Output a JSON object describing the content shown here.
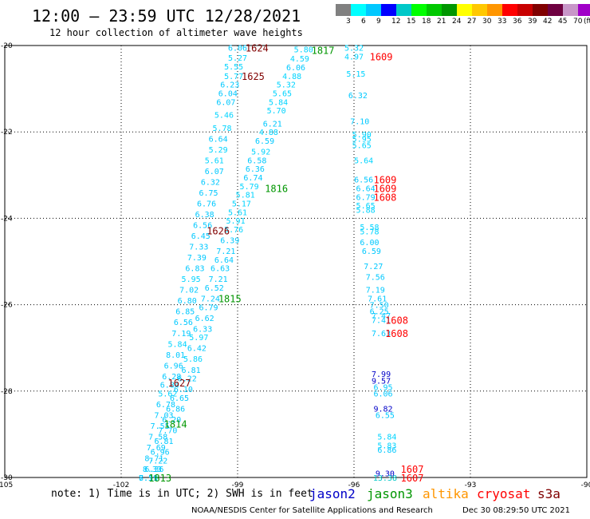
{
  "title": "12:00 — 23:59 UTC 12/28/2021",
  "subtitle": "12 hour collection of altimeter wave heights",
  "colorbar": {
    "colors": [
      "#808080",
      "#00ffff",
      "#00c8ff",
      "#0000ff",
      "#00c8c8",
      "#00ff00",
      "#00c800",
      "#009600",
      "#ffff00",
      "#ffc800",
      "#ff9600",
      "#ff0000",
      "#c80000",
      "#800000",
      "#6e0040",
      "#c896c8",
      "#a000c8",
      "#000000"
    ],
    "ticks": [
      "3",
      "6",
      "9",
      "12",
      "15",
      "18",
      "21",
      "24",
      "27",
      "30",
      "33",
      "36",
      "39",
      "42",
      "45",
      "70",
      "(ft)"
    ]
  },
  "axes": {
    "x_ticks": [
      "-105",
      "-102",
      "-99",
      "-96",
      "-93",
      "-90"
    ],
    "y_ticks": [
      "-20",
      "-22",
      "-24",
      "-26",
      "-28",
      "-30"
    ]
  },
  "satellites": [
    "jason2",
    "jason3",
    "altika",
    "cryosat",
    "s3a"
  ],
  "satellite_colors": {
    "jason2": "#0000c8",
    "jason3": "#009600",
    "altika": "#ff9600",
    "cryosat": "#ff0000",
    "s3a": "#800000"
  },
  "note": "note: 1) Time is in UTC; 2) SWH is in feet",
  "footer_left": "NOAA/NESDIS Center for Satellite Applications and Research",
  "footer_right": "Dec 30 08:29:50 UTC 2021",
  "chart_data": {
    "type": "scatter",
    "xlim": [
      -105,
      -90
    ],
    "ylim": [
      -30,
      -20
    ],
    "grid": true,
    "tracks": [
      {
        "name": "1624",
        "sat": "s3a",
        "time_labels": [
          {
            "text": "1624",
            "lon": -98.5,
            "lat": -20.05
          }
        ],
        "points": [
          [
            -99.0,
            -20.05,
            "6.06"
          ],
          [
            -99.0,
            -20.28,
            "5.27"
          ],
          [
            -99.1,
            -20.48,
            "5.55"
          ],
          [
            -99.1,
            -20.7,
            "5.77"
          ],
          [
            -99.2,
            -20.9,
            "6.23"
          ],
          [
            -99.25,
            -21.1,
            "6.04"
          ],
          [
            -99.3,
            -21.3,
            "6.07"
          ],
          [
            -99.35,
            -21.6,
            "5.46"
          ],
          [
            -99.4,
            -21.9,
            "5.78"
          ],
          [
            -99.5,
            -22.15,
            "6.64"
          ],
          [
            -99.5,
            -22.4,
            "5.29"
          ],
          [
            -99.6,
            -22.65,
            "5.61"
          ],
          [
            -99.6,
            -22.9,
            "6.07"
          ],
          [
            -99.7,
            -23.15,
            "6.32"
          ],
          [
            -99.75,
            -23.4,
            "6.75"
          ],
          [
            -99.8,
            -23.65,
            "6.76"
          ],
          [
            -99.85,
            -23.9,
            "6.38"
          ],
          [
            -99.9,
            -24.15,
            "6.56"
          ],
          [
            -99.95,
            -24.4,
            "6.45"
          ],
          [
            -100.0,
            -24.65,
            "7.33"
          ],
          [
            -100.05,
            -24.9,
            "7.39"
          ],
          [
            -100.1,
            -25.15,
            "6.83"
          ],
          [
            -100.2,
            -25.4,
            "5.95"
          ],
          [
            -100.25,
            -25.65,
            "7.02"
          ],
          [
            -100.3,
            -25.9,
            "6.80"
          ],
          [
            -100.35,
            -26.15,
            "6.85"
          ],
          [
            -100.4,
            -26.4,
            "6.56"
          ],
          [
            -100.45,
            -26.65,
            "7.19"
          ],
          [
            -100.55,
            -26.9,
            "5.84"
          ],
          [
            -100.6,
            -27.15,
            "8.01"
          ],
          [
            -100.65,
            -27.4,
            "6.96"
          ],
          [
            -100.7,
            -27.65,
            "6.28"
          ],
          [
            -100.75,
            -27.85,
            "6.84"
          ],
          [
            -100.8,
            -28.05,
            "5.62"
          ],
          [
            -100.85,
            -28.3,
            "6.78"
          ],
          [
            -100.9,
            -28.55,
            "7.03"
          ],
          [
            -101.0,
            -28.8,
            "7.55"
          ],
          [
            -101.05,
            -29.05,
            "7.58"
          ],
          [
            -101.1,
            -29.3,
            "7.69"
          ],
          [
            -101.15,
            -29.55,
            "8.71"
          ],
          [
            -101.2,
            -29.8,
            "8.33"
          ],
          [
            -101.3,
            -30.0,
            "7.59"
          ]
        ]
      },
      {
        "name": "1625",
        "sat": "s3a",
        "time_labels": [
          {
            "text": "1625",
            "lon": -98.6,
            "lat": -20.7
          },
          {
            "text": "1626",
            "lon": -99.5,
            "lat": -24.28
          },
          {
            "text": "1627",
            "lon": -100.5,
            "lat": -27.8
          }
        ],
        "points": [
          [
            -97.3,
            -20.08,
            "5.80"
          ],
          [
            -97.4,
            -20.3,
            "4.59"
          ],
          [
            -97.5,
            -20.5,
            "6.06"
          ],
          [
            -97.6,
            -20.7,
            "4.88"
          ],
          [
            -97.75,
            -20.9,
            "5.32"
          ],
          [
            -97.85,
            -21.1,
            "5.65"
          ],
          [
            -97.95,
            -21.3,
            "5.84"
          ],
          [
            -98.0,
            -21.5,
            "5.70"
          ],
          [
            -98.1,
            -21.8,
            "6.21"
          ],
          [
            -98.2,
            -22.0,
            "4.88"
          ],
          [
            -98.3,
            -22.2,
            "6.59"
          ],
          [
            -98.4,
            -22.45,
            "5.92"
          ],
          [
            -98.5,
            -22.65,
            "6.58"
          ],
          [
            -98.55,
            -22.85,
            "6.36"
          ],
          [
            -98.6,
            -23.05,
            "6.74"
          ],
          [
            -98.7,
            -23.25,
            "5.79"
          ],
          [
            -98.8,
            -23.45,
            "5.81"
          ],
          [
            -98.9,
            -23.65,
            "5.17"
          ],
          [
            -99.0,
            -23.85,
            "5.61"
          ],
          [
            -99.05,
            -24.05,
            "5.91"
          ],
          [
            -99.1,
            -24.25,
            "5.76"
          ],
          [
            -99.2,
            -24.5,
            "6.39"
          ],
          [
            -99.3,
            -24.75,
            "7.21"
          ],
          [
            -99.35,
            -24.95,
            "6.64"
          ],
          [
            -99.45,
            -25.15,
            "6.63"
          ],
          [
            -99.5,
            -25.4,
            "7.21"
          ],
          [
            -99.6,
            -25.6,
            "6.52"
          ],
          [
            -99.7,
            -25.85,
            "7.24"
          ],
          [
            -99.75,
            -26.05,
            "6.79"
          ],
          [
            -99.85,
            -26.3,
            "6.62"
          ],
          [
            -99.9,
            -26.55,
            "6.33"
          ],
          [
            -100.0,
            -26.75,
            "5.97"
          ],
          [
            -100.05,
            -27.0,
            "6.42"
          ],
          [
            -100.15,
            -27.25,
            "5.86"
          ],
          [
            -100.2,
            -27.5,
            "6.81"
          ],
          [
            -100.3,
            -27.7,
            "6.22"
          ],
          [
            -100.4,
            -27.95,
            "6.10"
          ],
          [
            -100.5,
            -28.15,
            "6.65"
          ],
          [
            -100.6,
            -28.4,
            "6.86"
          ],
          [
            -100.7,
            -28.65,
            "6.20"
          ],
          [
            -100.8,
            -28.9,
            "7.70"
          ],
          [
            -100.9,
            -29.15,
            "6.81"
          ],
          [
            -101.0,
            -29.4,
            "6.96"
          ],
          [
            -101.05,
            -29.6,
            "7.22"
          ],
          [
            -101.15,
            -29.8,
            "6.36"
          ],
          [
            -101.3,
            -30.0,
            "8.11"
          ]
        ]
      },
      {
        "name": "1609",
        "sat": "cryosat",
        "time_labels": [
          {
            "text": "1609",
            "lon": -95.3,
            "lat": -20.25
          },
          {
            "text": "1609",
            "lon": -95.2,
            "lat": -23.1
          },
          {
            "text": "1609",
            "lon": -95.2,
            "lat": -23.3
          },
          {
            "text": "1608",
            "lon": -95.2,
            "lat": -23.5
          },
          {
            "text": "1608",
            "lon": -94.9,
            "lat": -26.35
          },
          {
            "text": "1608",
            "lon": -94.9,
            "lat": -26.65
          },
          {
            "text": "1607",
            "lon": -94.5,
            "lat": -29.8
          },
          {
            "text": "1607",
            "lon": -94.5,
            "lat": -30.0
          }
        ],
        "points": [
          [
            -96.0,
            -20.05,
            "5.32"
          ],
          [
            -96.0,
            -20.25,
            "4.97"
          ],
          [
            -95.95,
            -20.65,
            "5.15"
          ],
          [
            -95.9,
            -21.15,
            "6.32"
          ],
          [
            -95.85,
            -21.75,
            "7.10"
          ],
          [
            -95.8,
            -22.05,
            "5.90"
          ],
          [
            -95.8,
            -22.15,
            "5.95"
          ],
          [
            -95.8,
            -22.3,
            "5.65"
          ],
          [
            -95.75,
            -22.65,
            "5.64"
          ],
          [
            -95.75,
            -23.1,
            "6.56"
          ],
          [
            -95.7,
            -23.3,
            "6.64"
          ],
          [
            -95.7,
            -23.5,
            "6.79"
          ],
          [
            -95.7,
            -23.7,
            "5.65"
          ],
          [
            -95.7,
            -23.8,
            "5.88"
          ],
          [
            -95.6,
            -24.2,
            "5.58"
          ],
          [
            -95.6,
            -24.3,
            "5.78"
          ],
          [
            -95.6,
            -24.55,
            "6.00"
          ],
          [
            -95.55,
            -24.75,
            "6.59"
          ],
          [
            -95.5,
            -25.1,
            "7.27"
          ],
          [
            -95.45,
            -25.35,
            "7.56"
          ],
          [
            -95.45,
            -25.65,
            "7.19"
          ],
          [
            -95.4,
            -25.85,
            "7.61"
          ],
          [
            -95.35,
            -26.0,
            "7.50"
          ],
          [
            -95.35,
            -26.15,
            "6.25"
          ],
          [
            -95.3,
            -26.25,
            "7.47"
          ],
          [
            -95.3,
            -26.35,
            "7.41"
          ],
          [
            -95.3,
            -26.65,
            "7.63"
          ]
        ]
      },
      {
        "name": "jason2",
        "sat": "jason2",
        "time_labels": [],
        "points": [
          [
            -95.3,
            -27.6,
            "7.99"
          ],
          [
            -95.3,
            -27.75,
            "9.57"
          ],
          [
            -95.25,
            -28.4,
            "9.82"
          ],
          [
            -95.2,
            -29.9,
            "9.30"
          ]
        ]
      },
      {
        "name": "1608b",
        "sat": "cryosat",
        "time_labels": [],
        "points": [
          [
            -95.25,
            -27.9,
            "6.95"
          ],
          [
            -95.25,
            -28.05,
            "6.06"
          ],
          [
            -95.2,
            -28.55,
            "6.55"
          ],
          [
            -95.15,
            -29.05,
            "5.84"
          ],
          [
            -95.15,
            -29.25,
            "5.83"
          ],
          [
            -95.15,
            -29.35,
            "6.86"
          ],
          [
            -95.2,
            -30.0,
            "13.38"
          ]
        ]
      },
      {
        "name": "1813",
        "sat": "jason3",
        "time_labels": [
          {
            "text": "1813",
            "lon": -101.0,
            "lat": -30.0
          },
          {
            "text": "1814",
            "lon": -100.6,
            "lat": -28.75
          },
          {
            "text": "1815",
            "lon": -99.2,
            "lat": -25.85
          },
          {
            "text": "1816",
            "lon": -98.0,
            "lat": -23.3
          },
          {
            "text": "1817",
            "lon": -96.8,
            "lat": -20.1
          }
        ],
        "points": []
      }
    ]
  }
}
